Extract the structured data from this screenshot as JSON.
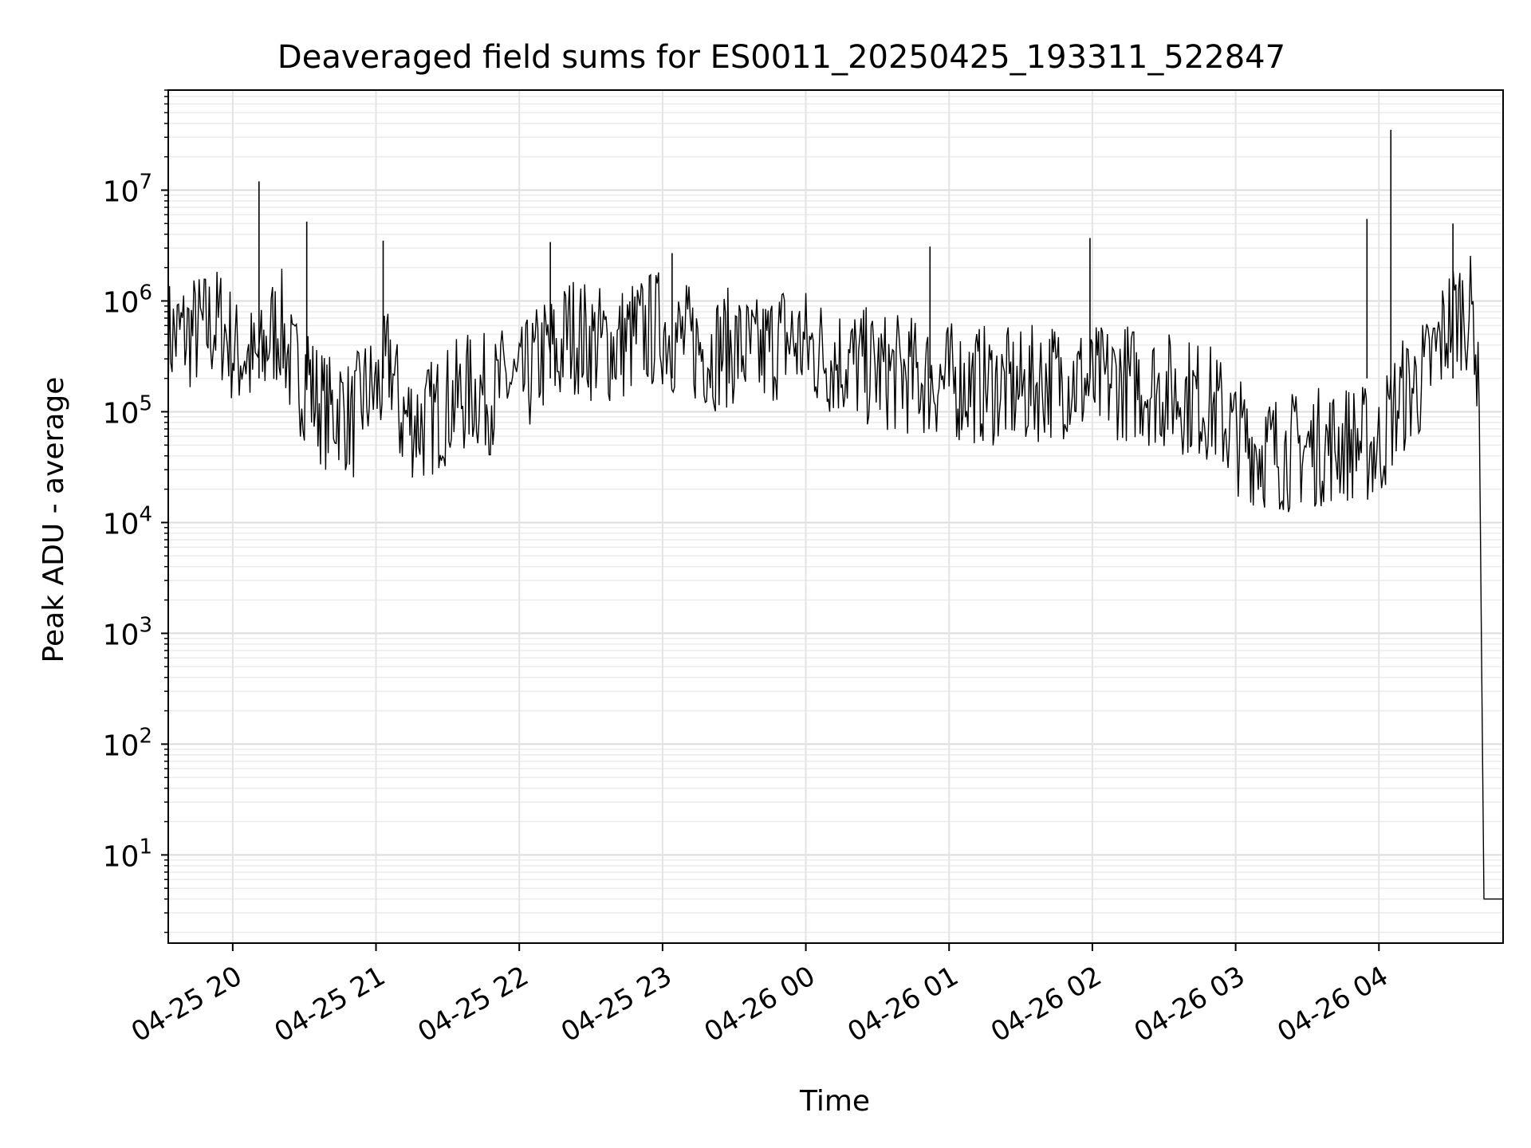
{
  "chart_data": {
    "type": "line",
    "title": "Deaveraged field sums for ES0011_20250425_193311_522847",
    "xlabel": "Time",
    "ylabel": "Peak ADU - average",
    "yscale": "log",
    "xlim": [
      "2025-04-25 19:33",
      "2025-04-26 04:52"
    ],
    "ylim": [
      1.6,
      80000000
    ],
    "grid": "on (major and minor)",
    "x_tick_labels": [
      "04-25 20",
      "04-25 21",
      "04-25 22",
      "04-25 23",
      "04-26 00",
      "04-26 01",
      "04-26 02",
      "04-26 03",
      "04-26 04"
    ],
    "x_tick_times": [
      "2025-04-25 20:00",
      "2025-04-25 21:00",
      "2025-04-25 22:00",
      "2025-04-25 23:00",
      "2025-04-26 00:00",
      "2025-04-26 01:00",
      "2025-04-26 02:00",
      "2025-04-26 03:00",
      "2025-04-26 04:00"
    ],
    "y_ticks": [
      {
        "base": "10",
        "exp": "1",
        "value": 10
      },
      {
        "base": "10",
        "exp": "2",
        "value": 100
      },
      {
        "base": "10",
        "exp": "3",
        "value": 1000
      },
      {
        "base": "10",
        "exp": "4",
        "value": 10000
      },
      {
        "base": "10",
        "exp": "5",
        "value": 100000
      },
      {
        "base": "10",
        "exp": "6",
        "value": 1000000
      },
      {
        "base": "10",
        "exp": "7",
        "value": 10000000
      }
    ],
    "series": [
      {
        "color": "#000000",
        "x": [
          "2025-04-25 19:33",
          "2025-04-25 19:40",
          "2025-04-25 19:47",
          "2025-04-25 19:55",
          "2025-04-25 20:00",
          "2025-04-25 20:01",
          "2025-04-25 20:05",
          "2025-04-25 20:10",
          "2025-04-25 20:11",
          "2025-04-25 20:12",
          "2025-04-25 20:15",
          "2025-04-25 20:20",
          "2025-04-25 20:25",
          "2025-04-25 20:30",
          "2025-04-25 20:31",
          "2025-04-25 20:33",
          "2025-04-25 20:40",
          "2025-04-25 20:45",
          "2025-04-25 20:50",
          "2025-04-25 20:55",
          "2025-04-25 21:00",
          "2025-04-25 21:03",
          "2025-04-25 21:06",
          "2025-04-25 21:10",
          "2025-04-25 21:20",
          "2025-04-25 21:30",
          "2025-04-25 21:40",
          "2025-04-25 21:50",
          "2025-04-25 21:55",
          "2025-04-25 22:00",
          "2025-04-25 22:05",
          "2025-04-25 22:10",
          "2025-04-25 22:13",
          "2025-04-25 22:16",
          "2025-04-25 22:20",
          "2025-04-25 22:30",
          "2025-04-25 22:40",
          "2025-04-25 22:50",
          "2025-04-25 22:55",
          "2025-04-25 23:00",
          "2025-04-25 23:05",
          "2025-04-25 23:10",
          "2025-04-25 23:20",
          "2025-04-25 23:30",
          "2025-04-25 23:40",
          "2025-04-25 23:50",
          "2025-04-26 00:00",
          "2025-04-26 00:10",
          "2025-04-26 00:20",
          "2025-04-26 00:30",
          "2025-04-26 00:40",
          "2025-04-26 00:50",
          "2025-04-26 01:00",
          "2025-04-26 01:10",
          "2025-04-26 01:20",
          "2025-04-26 01:30",
          "2025-04-26 01:40",
          "2025-04-26 01:50",
          "2025-04-26 02:00",
          "2025-04-26 02:10",
          "2025-04-26 02:20",
          "2025-04-26 02:30",
          "2025-04-26 02:40",
          "2025-04-26 02:50",
          "2025-04-26 03:00",
          "2025-04-26 03:10",
          "2025-04-26 03:20",
          "2025-04-26 03:30",
          "2025-04-26 03:40",
          "2025-04-26 03:50",
          "2025-04-26 04:00",
          "2025-04-26 04:05",
          "2025-04-26 04:10",
          "2025-04-26 04:15",
          "2025-04-26 04:20",
          "2025-04-26 04:25",
          "2025-04-26 04:30",
          "2025-04-26 04:35",
          "2025-04-26 04:40",
          "2025-04-26 04:42",
          "2025-04-26 04:44",
          "2025-04-26 04:46",
          "2025-04-26 04:52"
        ],
        "y": [
          600000,
          650000,
          700000,
          800000,
          500000,
          400000,
          450000,
          300000,
          500000,
          350000,
          600000,
          800000,
          300000,
          250000,
          400000,
          200000,
          120000,
          150000,
          100000,
          180000,
          200000,
          250000,
          400000,
          120000,
          100000,
          150000,
          200000,
          180000,
          250000,
          200000,
          300000,
          400000,
          500000,
          350000,
          700000,
          550000,
          500000,
          650000,
          700000,
          750000,
          600000,
          550000,
          450000,
          500000,
          400000,
          600000,
          500000,
          400000,
          350000,
          300000,
          280000,
          260000,
          240000,
          230000,
          220000,
          200000,
          250000,
          260000,
          220000,
          250000,
          230000,
          200000,
          180000,
          150000,
          80000,
          60000,
          55000,
          60000,
          65000,
          70000,
          60000,
          120000,
          180000,
          220000,
          280000,
          500000,
          900000,
          1100000,
          900000,
          100000,
          4,
          4,
          4
        ]
      }
    ],
    "spikes": [
      {
        "x": "2025-04-25 20:11",
        "y": 12000000
      },
      {
        "x": "2025-04-25 20:31",
        "y": 5200000
      },
      {
        "x": "2025-04-25 21:03",
        "y": 3500000
      },
      {
        "x": "2025-04-25 22:13",
        "y": 3400000
      },
      {
        "x": "2025-04-25 23:04",
        "y": 2700000
      },
      {
        "x": "2025-04-26 00:52",
        "y": 3100000
      },
      {
        "x": "2025-04-26 01:59",
        "y": 3700000
      },
      {
        "x": "2025-04-26 03:55",
        "y": 5500000
      },
      {
        "x": "2025-04-26 04:05",
        "y": 35000000
      },
      {
        "x": "2025-04-26 04:31",
        "y": 5000000
      }
    ]
  }
}
